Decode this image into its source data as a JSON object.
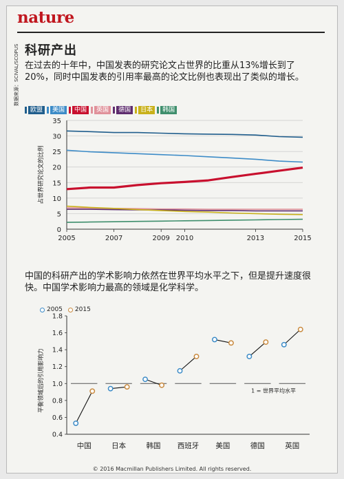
{
  "brand": "nature",
  "title": "科研产出",
  "lead1": "在过去的十年中，中国发表的研究论文占世界的比重从13%增长到了20%，同时中国发表的引用率最高的论文比例也表现出了类似的增长。",
  "source": "数据来源：SCIVAL/SCOPUS",
  "lead2": "中国的科研产出的学术影响力依然在世界平均水平之下，但是提升速度很快。中国学术影响力最高的领域是化学科学。",
  "copyright": "© 2016 Macmillan Publishers Limited. All rights reserved.",
  "chart_data": [
    {
      "type": "line",
      "ylabel": "占世界研究论文的比例",
      "ylim": [
        0,
        35
      ],
      "yticks": [
        0,
        5,
        10,
        15,
        20,
        25,
        30,
        35
      ],
      "xticks": [
        2005,
        2007,
        2009,
        2010,
        2013,
        2015
      ],
      "x": [
        2005,
        2006,
        2007,
        2008,
        2009,
        2010,
        2011,
        2012,
        2013,
        2014,
        2015
      ],
      "grid": true,
      "legend_position": "top-left",
      "series": [
        {
          "name": "欧盟",
          "color": "#1f5d8c",
          "values": [
            31.6,
            31.4,
            31.1,
            31.1,
            30.9,
            30.7,
            30.6,
            30.5,
            30.3,
            29.8,
            29.6
          ]
        },
        {
          "name": "美国",
          "color": "#3c8bc7",
          "values": [
            25.4,
            24.9,
            24.6,
            24.3,
            24.0,
            23.7,
            23.3,
            22.9,
            22.5,
            21.9,
            21.6
          ]
        },
        {
          "name": "中国",
          "color": "#c8102e",
          "values": [
            12.9,
            13.4,
            13.4,
            14.2,
            14.8,
            15.2,
            15.7,
            16.8,
            17.8,
            18.8,
            19.8
          ]
        },
        {
          "name": "英国",
          "color": "#e0919a",
          "values": [
            6.9,
            6.8,
            6.7,
            6.6,
            6.5,
            6.5,
            6.4,
            6.4,
            6.4,
            6.4,
            6.4
          ]
        },
        {
          "name": "德国",
          "color": "#5e2c6e",
          "values": [
            6.4,
            6.4,
            6.3,
            6.2,
            6.2,
            6.1,
            6.0,
            6.0,
            5.9,
            5.9,
            5.9
          ]
        },
        {
          "name": "日本",
          "color": "#c9b11a",
          "values": [
            7.4,
            7.0,
            6.7,
            6.3,
            6.0,
            5.7,
            5.5,
            5.2,
            5.0,
            4.8,
            4.7
          ]
        },
        {
          "name": "韩国",
          "color": "#3e8e6c",
          "values": [
            2.2,
            2.3,
            2.4,
            2.5,
            2.6,
            2.7,
            2.8,
            2.9,
            3.0,
            3.1,
            3.2
          ]
        }
      ]
    },
    {
      "type": "scatter",
      "ylabel": "平衡领域后的引用影响力",
      "ylim": [
        0.4,
        1.8
      ],
      "yticks": [
        0.4,
        0.6,
        0.8,
        1.0,
        1.2,
        1.4,
        1.6,
        1.8
      ],
      "categories": [
        "中国",
        "日本",
        "韩国",
        "西班牙",
        "美国",
        "德国",
        "英国"
      ],
      "series": [
        {
          "name": "2005",
          "color": "#3c8bc7",
          "values": [
            0.53,
            0.94,
            1.05,
            1.15,
            1.52,
            1.32,
            1.46
          ]
        },
        {
          "name": "2015",
          "color": "#c98a3f",
          "values": [
            0.91,
            0.96,
            0.98,
            1.32,
            1.48,
            1.49,
            1.64
          ]
        }
      ],
      "reference_line": {
        "value": 1.0,
        "label": "1 = 世界平均水平"
      },
      "legend_position": "top-left"
    }
  ]
}
